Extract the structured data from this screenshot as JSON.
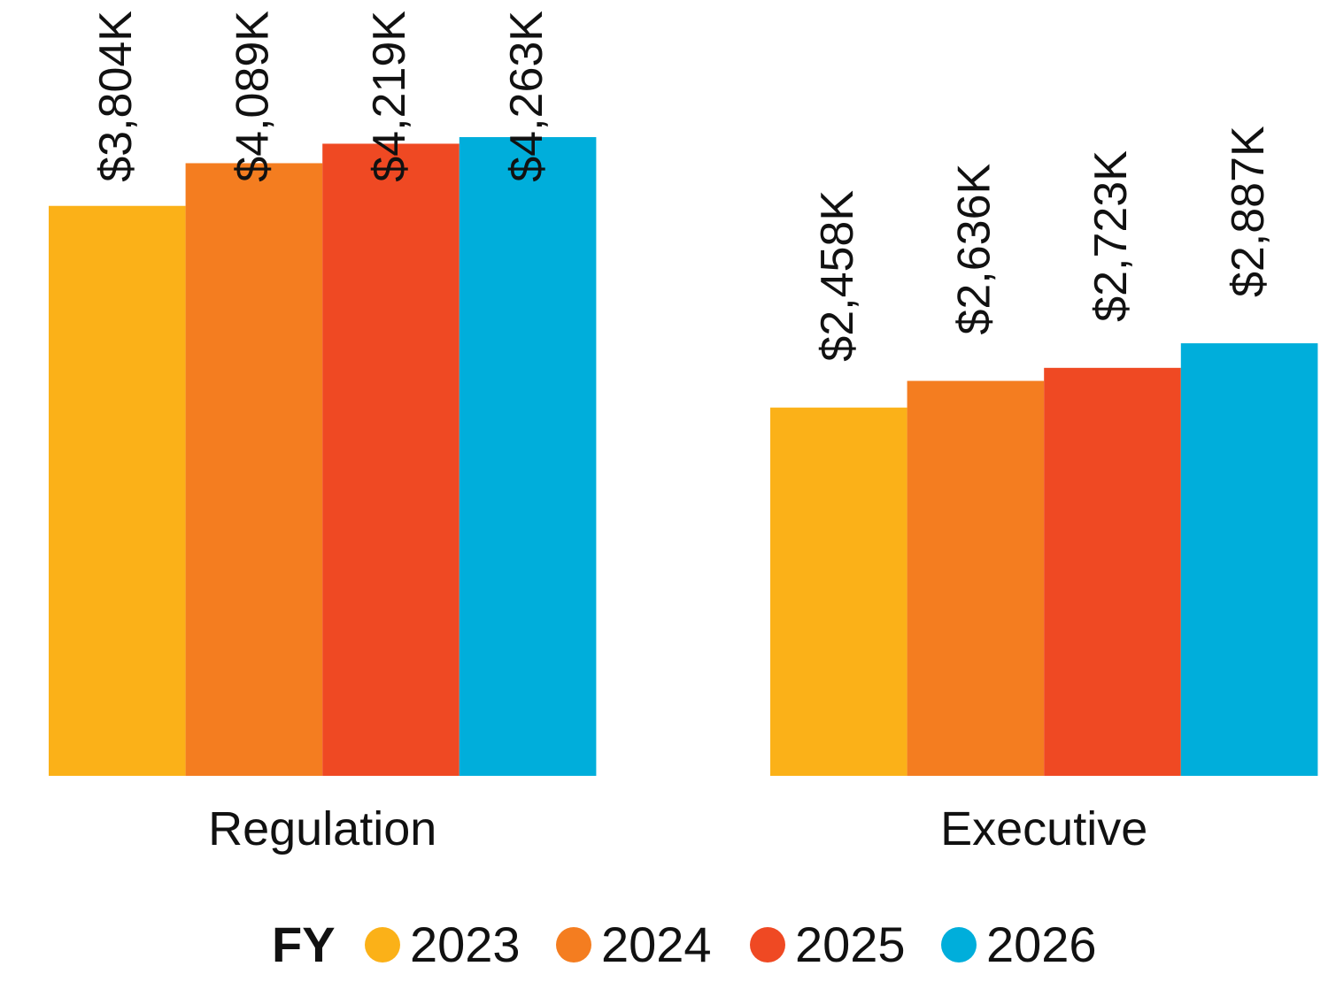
{
  "chart_data": {
    "type": "bar",
    "categories": [
      "Regulation",
      "Executive"
    ],
    "legend_title": "FY",
    "series": [
      {
        "name": "2023",
        "color": "#FBB118",
        "values": [
          3804,
          2458
        ],
        "value_labels": [
          "$3,804K",
          "$2,458K"
        ]
      },
      {
        "name": "2024",
        "color": "#F47D20",
        "values": [
          4089,
          2636
        ],
        "value_labels": [
          "$4,089K",
          "$2,636K"
        ]
      },
      {
        "name": "2025",
        "color": "#EF4923",
        "values": [
          4219,
          2723
        ],
        "value_labels": [
          "$4,219K",
          "$2,723K"
        ]
      },
      {
        "name": "2026",
        "color": "#00AEDB",
        "values": [
          4263,
          2887
        ],
        "value_labels": [
          "$4,263K",
          "$2,887K"
        ]
      }
    ],
    "legend": "bottom"
  }
}
